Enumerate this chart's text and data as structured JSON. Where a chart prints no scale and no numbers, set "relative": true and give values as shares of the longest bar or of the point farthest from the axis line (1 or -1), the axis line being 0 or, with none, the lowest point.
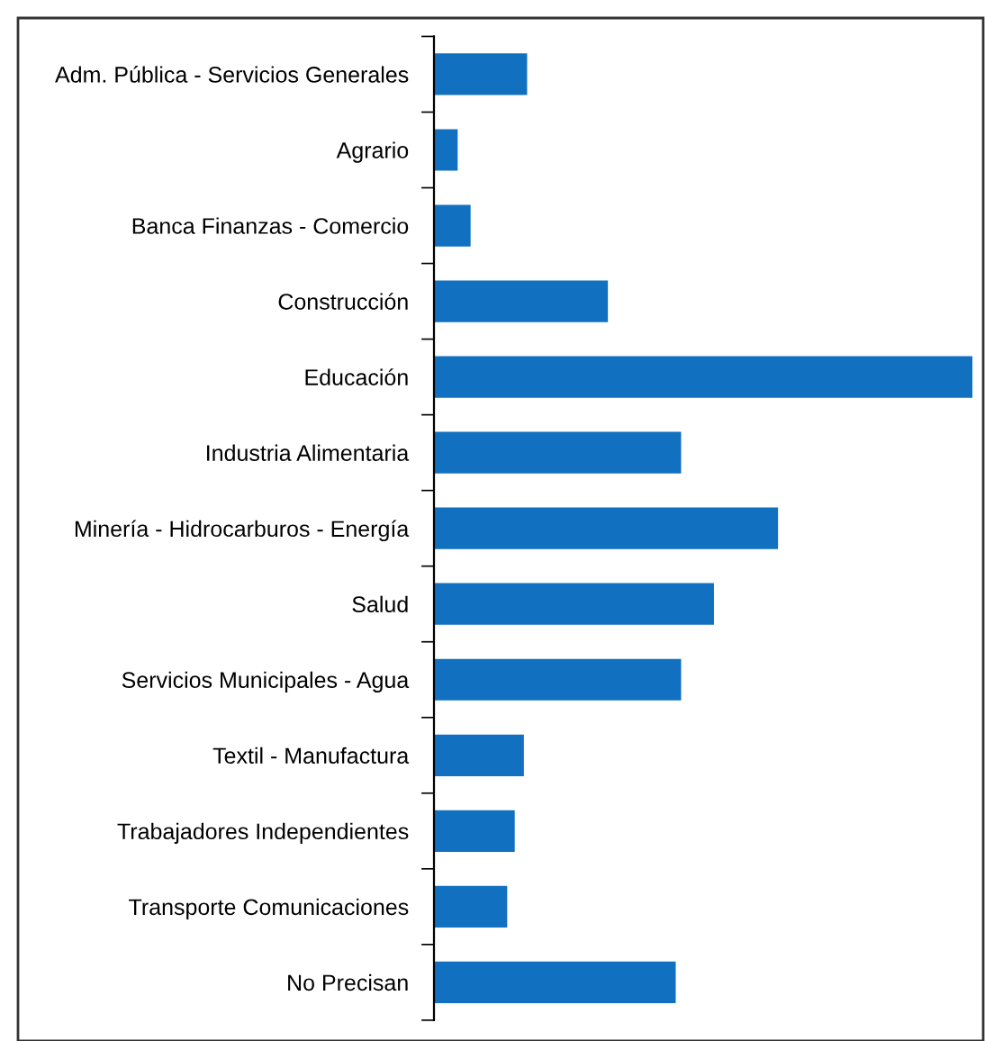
{
  "chart_data": {
    "type": "bar",
    "orientation": "horizontal",
    "relative": true,
    "color": "#1170bf",
    "categories": [
      "Adm. Pública - Servicios Generales",
      "Agrario",
      "Banca Finanzas - Comercio",
      "Construcción",
      "Educación",
      "Industria Alimentaria",
      "Minería - Hidrocarburos - Energía",
      "Salud",
      "Servicios Municipales - Agua",
      "Textil - Manufactura",
      "Trabajadores Independientes",
      "Transporte Comunicaciones",
      "No Precisan"
    ],
    "values": [
      0.173,
      0.044,
      0.068,
      0.323,
      1,
      0.459,
      0.639,
      0.52,
      0.459,
      0.167,
      0.15,
      0.136,
      0.449
    ],
    "grid": false,
    "legend": false
  }
}
